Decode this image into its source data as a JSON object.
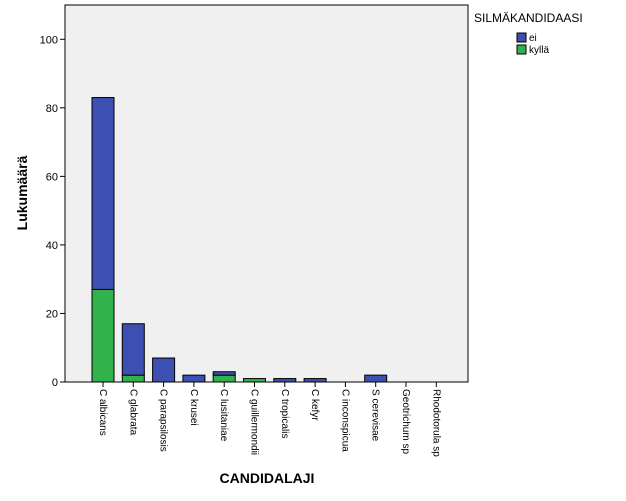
{
  "chart_data": {
    "type": "bar",
    "stacked": true,
    "categories": [
      "C albicans",
      "C glabrata",
      "C parapsilosis",
      "C krusei",
      "C lusitaniae",
      "C guillermondii",
      "C tropicalis",
      "C kefyr",
      "C inconspicua",
      "S cerevisae",
      "Geotrichum sp",
      "Rhodotorula sp"
    ],
    "series": [
      {
        "name": "kyllä",
        "color": "#32b24b",
        "values": [
          27,
          2,
          0,
          0,
          2,
          1,
          0,
          0,
          0,
          0,
          0,
          0
        ]
      },
      {
        "name": "ei",
        "color": "#3d4fb0",
        "values": [
          56,
          15,
          7,
          2,
          1,
          0,
          1,
          1,
          0,
          2,
          0,
          0
        ]
      }
    ],
    "xlabel": "CANDIDALAJI",
    "ylabel": "Lukumäärä",
    "ylim": [
      0,
      110
    ],
    "yticks": [
      0,
      20,
      40,
      60,
      80,
      100
    ],
    "legend": {
      "title": "SILMÄKANDIDAASI",
      "position": "top-right",
      "order": [
        "ei",
        "kyllä"
      ]
    },
    "plot_background": "#f0f0f0",
    "grid": false
  }
}
